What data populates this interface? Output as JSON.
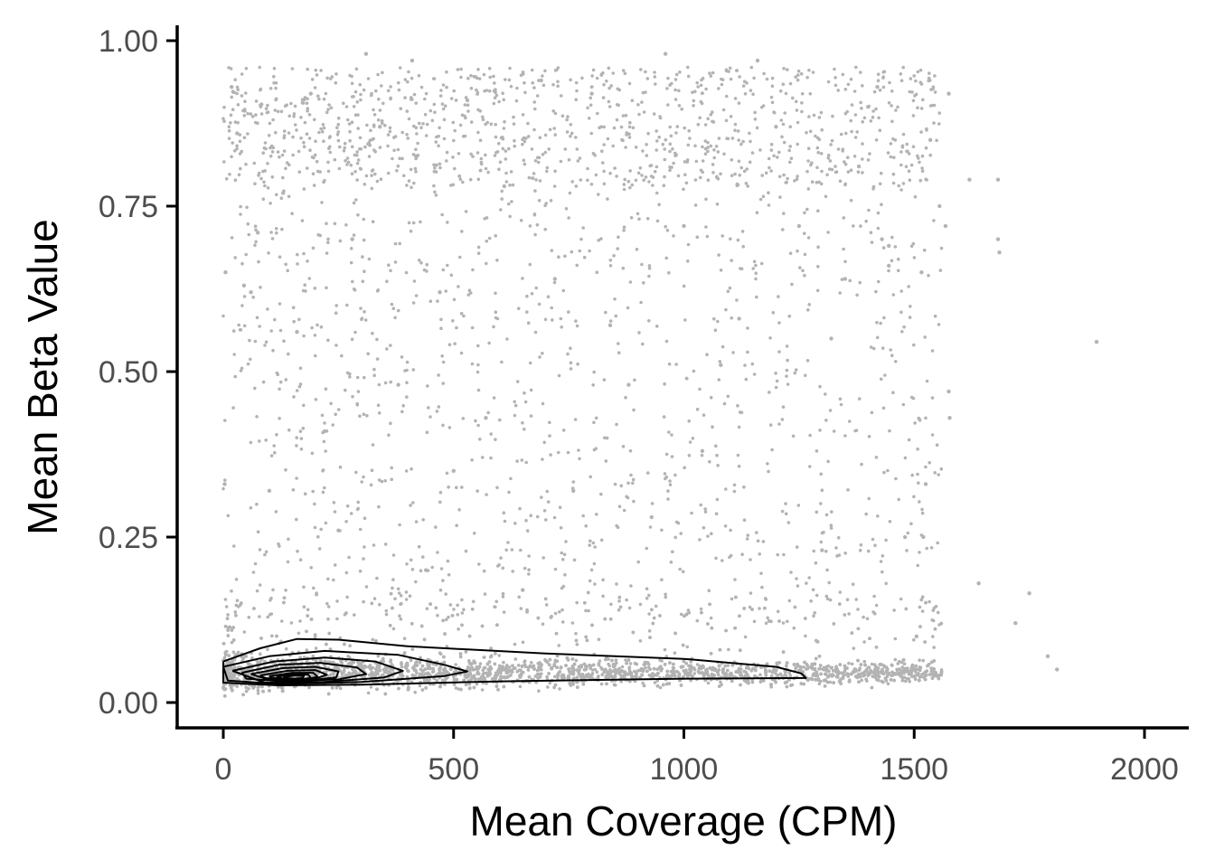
{
  "chart_data": {
    "type": "scatter",
    "title": "",
    "xlabel": "Mean Coverage (CPM)",
    "ylabel": "Mean Beta Value",
    "xlim": [
      -100,
      2100
    ],
    "ylim": [
      -0.035,
      1.03
    ],
    "x_ticks": [
      0,
      500,
      1000,
      1500,
      2000
    ],
    "x_tick_labels": [
      "0",
      "500",
      "1000",
      "1500",
      "2000"
    ],
    "y_ticks": [
      0,
      0.25,
      0.5,
      0.75,
      1.0
    ],
    "y_tick_labels": [
      "0.00",
      "0.25",
      "0.50",
      "0.75",
      "1.00"
    ],
    "grid": false,
    "legend": "none",
    "colors": {
      "points": "#b3b3b3",
      "contours": "#000000",
      "axis": "#000000"
    },
    "points_note": "dense cloud of low-beta points (beta about 0.02-0.10) across coverage 0-1500 CPM, with sparse scattered points up to beta about 1.0",
    "points": [
      [
        1896,
        0.545
      ],
      [
        1682,
        0.79
      ],
      [
        1682,
        0.7
      ],
      [
        1685,
        0.68
      ],
      [
        1750,
        0.165
      ],
      [
        1720,
        0.12
      ],
      [
        1790,
        0.07
      ],
      [
        1810,
        0.05
      ],
      [
        1640,
        0.18
      ],
      [
        1620,
        0.79
      ],
      [
        1575,
        0.92
      ],
      [
        1575,
        0.47
      ],
      [
        1577,
        0.43
      ],
      [
        1568,
        0.72
      ],
      [
        1555,
        0.75
      ],
      [
        1535,
        0.85
      ],
      [
        1516,
        0.65
      ],
      [
        1525,
        0.33
      ],
      [
        1520,
        0.25
      ],
      [
        1505,
        0.1
      ],
      [
        1480,
        0.25
      ],
      [
        1430,
        0.7
      ],
      [
        1445,
        0.69
      ],
      [
        1445,
        0.66
      ],
      [
        1420,
        0.93
      ],
      [
        1400,
        0.9
      ],
      [
        1380,
        0.81
      ],
      [
        1350,
        0.64
      ],
      [
        1320,
        0.55
      ],
      [
        1300,
        0.23
      ],
      [
        1250,
        0.72
      ],
      [
        1200,
        0.87
      ],
      [
        1160,
        0.97
      ],
      [
        1120,
        0.58
      ],
      [
        1080,
        0.51
      ],
      [
        1040,
        0.38
      ],
      [
        1000,
        0.72
      ],
      [
        960,
        0.98
      ],
      [
        930,
        0.28
      ],
      [
        880,
        0.48
      ],
      [
        840,
        0.57
      ],
      [
        800,
        0.92
      ],
      [
        760,
        0.32
      ],
      [
        720,
        0.64
      ],
      [
        690,
        0.94
      ],
      [
        650,
        0.17
      ],
      [
        610,
        0.78
      ],
      [
        570,
        0.43
      ],
      [
        530,
        0.91
      ],
      [
        500,
        0.35
      ],
      [
        470,
        0.62
      ],
      [
        440,
        0.2
      ],
      [
        410,
        0.97
      ],
      [
        380,
        0.48
      ],
      [
        340,
        0.87
      ],
      [
        310,
        0.98
      ],
      [
        280,
        0.7
      ],
      [
        250,
        0.26
      ],
      [
        220,
        0.41
      ],
      [
        190,
        0.92
      ],
      [
        160,
        0.56
      ],
      [
        130,
        0.77
      ],
      [
        100,
        0.32
      ],
      [
        75,
        0.71
      ],
      [
        60,
        0.62
      ],
      [
        45,
        0.63
      ],
      [
        30,
        0.86
      ],
      [
        18,
        0.93
      ],
      [
        5,
        0.65
      ],
      [
        3,
        0.33
      ]
    ],
    "contours": [
      [
        [
          0,
          0.062
        ],
        [
          80,
          0.082
        ],
        [
          160,
          0.096
        ],
        [
          250,
          0.095
        ],
        [
          400,
          0.085
        ],
        [
          700,
          0.074
        ],
        [
          1000,
          0.066
        ],
        [
          1200,
          0.054
        ],
        [
          1255,
          0.044
        ],
        [
          1265,
          0.037
        ],
        [
          1000,
          0.036
        ],
        [
          600,
          0.032
        ],
        [
          300,
          0.027
        ],
        [
          120,
          0.026
        ],
        [
          0,
          0.03
        ],
        [
          0,
          0.062
        ]
      ],
      [
        [
          0,
          0.054
        ],
        [
          100,
          0.07
        ],
        [
          220,
          0.078
        ],
        [
          380,
          0.072
        ],
        [
          480,
          0.057
        ],
        [
          530,
          0.047
        ],
        [
          480,
          0.04
        ],
        [
          300,
          0.031
        ],
        [
          120,
          0.028
        ],
        [
          10,
          0.033
        ],
        [
          0,
          0.054
        ]
      ],
      [
        [
          20,
          0.048
        ],
        [
          110,
          0.062
        ],
        [
          220,
          0.068
        ],
        [
          330,
          0.062
        ],
        [
          390,
          0.048
        ],
        [
          350,
          0.038
        ],
        [
          220,
          0.031
        ],
        [
          90,
          0.03
        ],
        [
          20,
          0.048
        ]
      ],
      [
        [
          40,
          0.045
        ],
        [
          120,
          0.057
        ],
        [
          210,
          0.06
        ],
        [
          290,
          0.053
        ],
        [
          310,
          0.043
        ],
        [
          250,
          0.035
        ],
        [
          130,
          0.032
        ],
        [
          50,
          0.036
        ],
        [
          40,
          0.045
        ]
      ],
      [
        [
          60,
          0.043
        ],
        [
          130,
          0.052
        ],
        [
          200,
          0.054
        ],
        [
          250,
          0.047
        ],
        [
          245,
          0.038
        ],
        [
          180,
          0.033
        ],
        [
          100,
          0.034
        ],
        [
          60,
          0.043
        ]
      ],
      [
        [
          80,
          0.041
        ],
        [
          140,
          0.048
        ],
        [
          200,
          0.049
        ],
        [
          225,
          0.042
        ],
        [
          200,
          0.036
        ],
        [
          140,
          0.034
        ],
        [
          90,
          0.037
        ],
        [
          80,
          0.041
        ]
      ],
      [
        [
          100,
          0.04
        ],
        [
          150,
          0.045
        ],
        [
          195,
          0.045
        ],
        [
          205,
          0.039
        ],
        [
          180,
          0.035
        ],
        [
          130,
          0.035
        ],
        [
          105,
          0.038
        ],
        [
          100,
          0.04
        ]
      ],
      [
        [
          115,
          0.039
        ],
        [
          155,
          0.043
        ],
        [
          185,
          0.042
        ],
        [
          190,
          0.037
        ],
        [
          165,
          0.035
        ],
        [
          130,
          0.036
        ],
        [
          115,
          0.039
        ]
      ],
      [
        [
          130,
          0.038
        ],
        [
          155,
          0.041
        ],
        [
          175,
          0.04
        ],
        [
          172,
          0.037
        ],
        [
          152,
          0.036
        ],
        [
          130,
          0.038
        ]
      ]
    ]
  }
}
